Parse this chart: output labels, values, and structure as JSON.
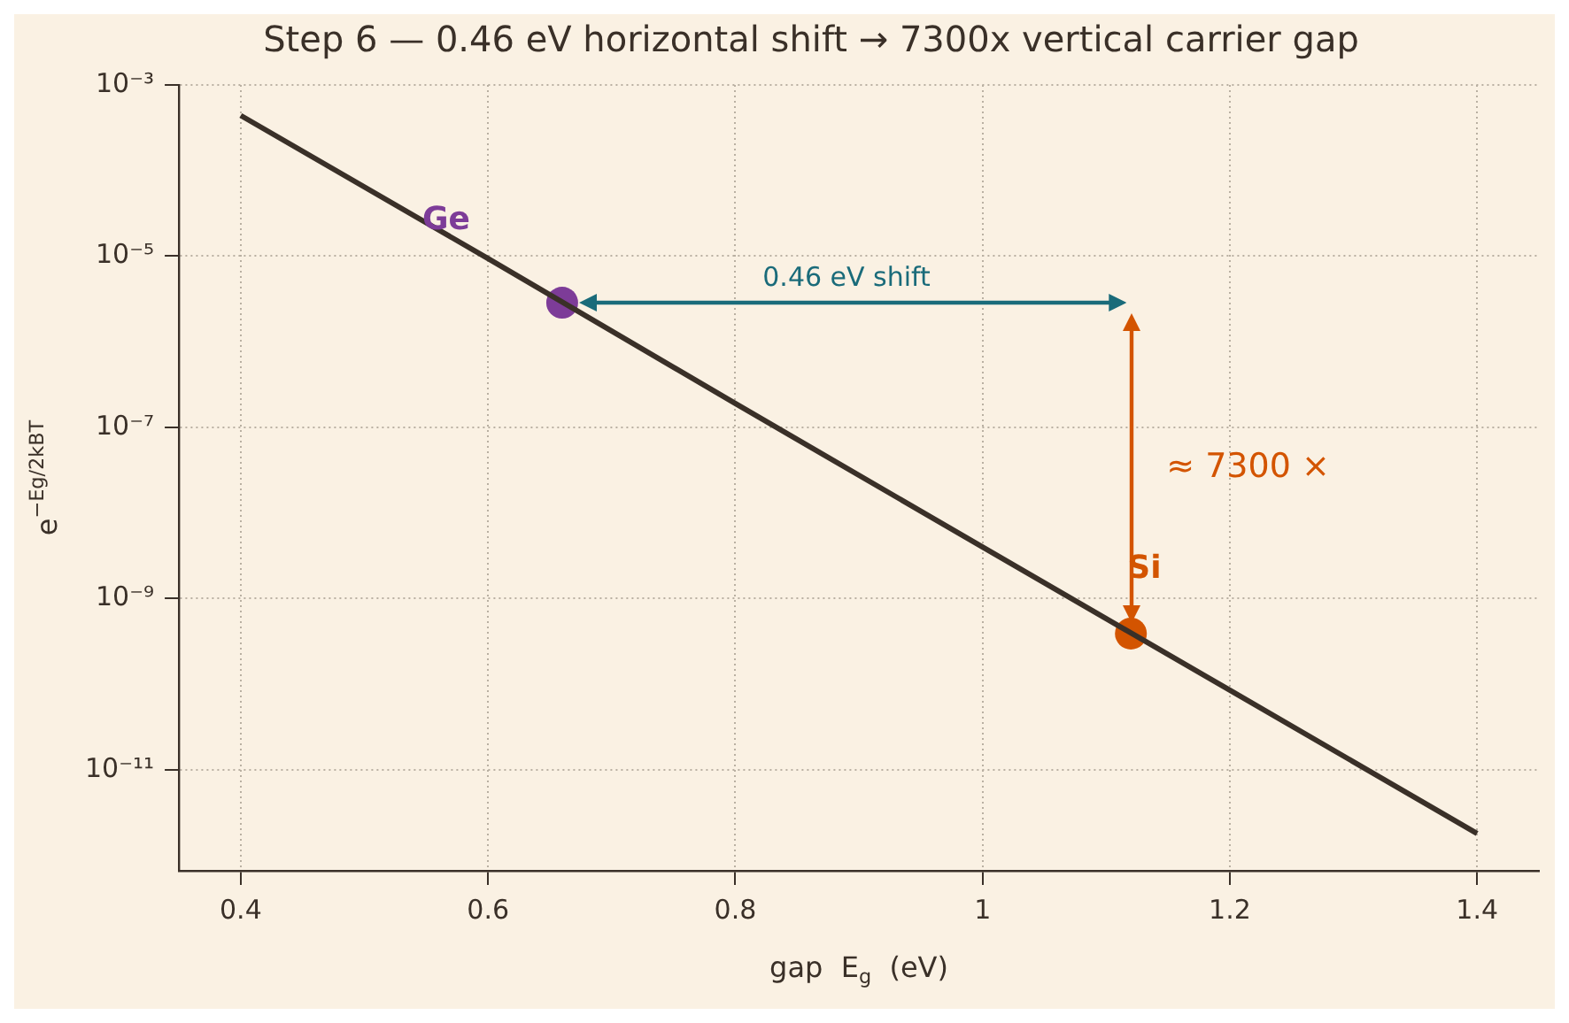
{
  "chart_data": {
    "type": "line",
    "title": "Step 6 — 0.46 eV horizontal shift → 7300x vertical carrier gap",
    "xlabel": "gap  E$_{g}$  (eV)",
    "ylabel": "e$^{−Eg/2kBT}$",
    "log": "y",
    "grid": true,
    "xlim": [
      0.35,
      1.45
    ],
    "xticks": [
      0.4,
      0.6,
      0.8,
      1.0,
      1.2,
      1.4
    ],
    "ylim": [
      6.6e-13,
      0.001
    ],
    "yticks": [
      {
        "value": 0.001,
        "label": "10⁻³"
      },
      {
        "value": 1e-05,
        "label": "10⁻⁵"
      },
      {
        "value": 1e-07,
        "label": "10⁻⁷"
      },
      {
        "value": 1e-09,
        "label": "10⁻⁹"
      },
      {
        "value": 1e-11,
        "label": "10⁻¹¹"
      }
    ],
    "series": [
      {
        "color": "#3a3028",
        "marker": "none",
        "x": [
          0.4,
          0.6,
          0.8,
          1.0,
          1.2,
          1.4
        ],
        "values": [
          0.00044,
          9.4e-06,
          1.9e-07,
          4e-09,
          8.5e-11,
          1.8e-12
        ]
      },
      {
        "type": "scatter",
        "name": "Ge",
        "color": "#7d3c98",
        "marker": "circle",
        "x": [
          0.66
        ],
        "values": [
          2.86e-06
        ]
      },
      {
        "type": "scatter",
        "name": "Si",
        "color": "#d35400",
        "marker": "circle",
        "x": [
          1.12
        ],
        "values": [
          3.9e-10
        ]
      }
    ],
    "annotations": [
      "0.46 eV shift",
      "≈ 7300 ×"
    ]
  }
}
